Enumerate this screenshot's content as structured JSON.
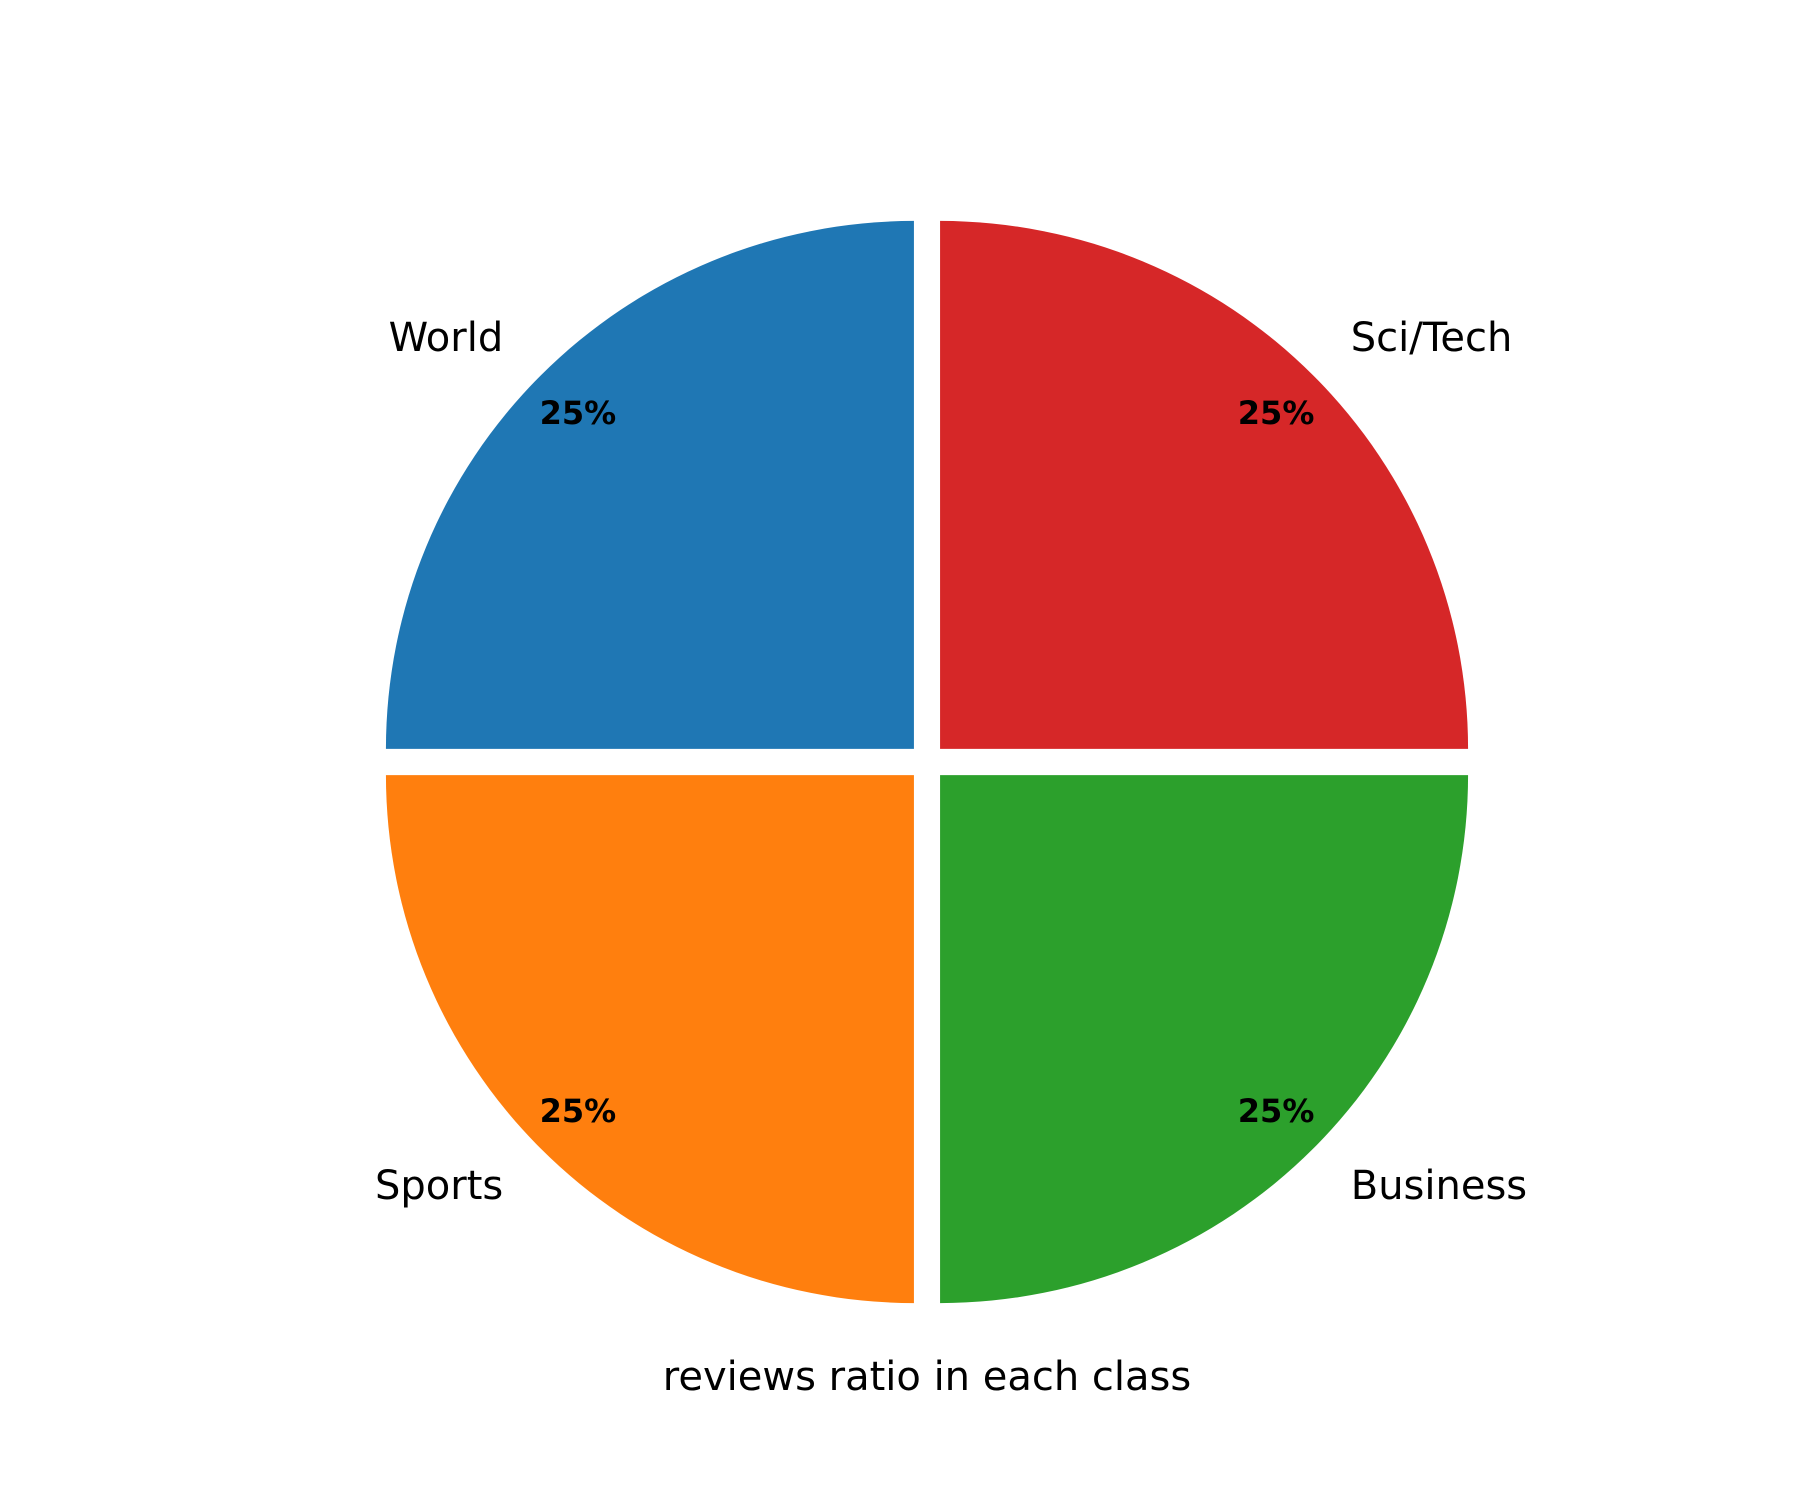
{
  "chart_data": {
    "type": "pie",
    "title": "",
    "xlabel": "reviews ratio in each class",
    "start_angle_deg": 90,
    "direction": "counterclockwise",
    "explode": 0.035,
    "slices": [
      {
        "label": "World",
        "value": 25,
        "pct_label": "25%",
        "color": "#1f77b4"
      },
      {
        "label": "Sports",
        "value": 25,
        "pct_label": "25%",
        "color": "#ff7f0e"
      },
      {
        "label": "Business",
        "value": 25,
        "pct_label": "25%",
        "color": "#2ca02c"
      },
      {
        "label": "Sci/Tech",
        "value": 25,
        "pct_label": "25%",
        "color": "#d62728"
      }
    ]
  }
}
